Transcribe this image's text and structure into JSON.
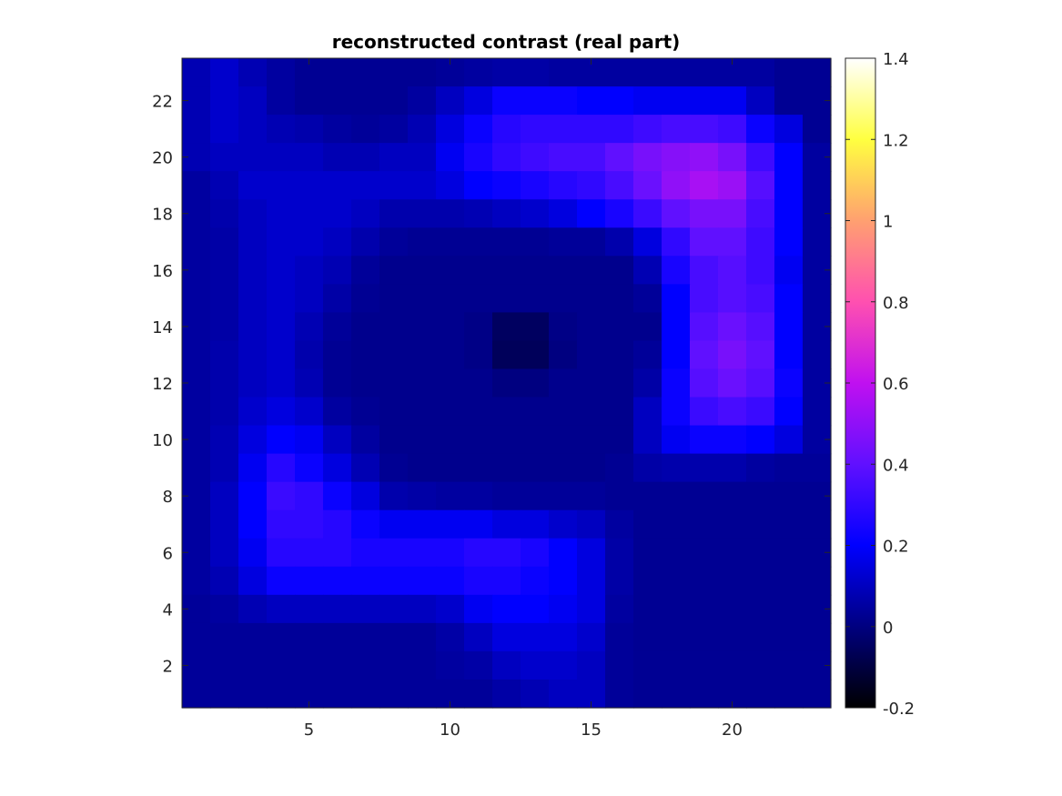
{
  "chart_data": {
    "type": "heatmap",
    "title": "reconstructed contrast (real part)",
    "xlabel": "",
    "ylabel": "",
    "xlim": [
      0.5,
      23.5
    ],
    "ylim": [
      0.5,
      23.5
    ],
    "y_direction": "normal",
    "xticks": [
      5,
      10,
      15,
      20
    ],
    "yticks": [
      2,
      4,
      6,
      8,
      10,
      12,
      14,
      16,
      18,
      20,
      22
    ],
    "colormap": "gnuplot2",
    "colorbar": {
      "range": [
        -0.2,
        1.4
      ],
      "ticks": [
        -0.2,
        0,
        0.2,
        0.4,
        0.6,
        0.8,
        1,
        1.2,
        1.4
      ],
      "tick_labels": [
        "-0.2",
        "0",
        "0.2",
        "0.4",
        "0.6",
        "0.8",
        "1",
        "1.2",
        "1.4"
      ]
    },
    "grid": false,
    "rows_order": "y=23 first (top) down to y=1 (bottom); columns x=1..23",
    "z": [
      [
        0.08,
        0.12,
        0.08,
        0.05,
        0.03,
        0.03,
        0.03,
        0.03,
        0.03,
        0.04,
        0.05,
        0.06,
        0.06,
        0.05,
        0.05,
        0.05,
        0.05,
        0.05,
        0.05,
        0.05,
        0.05,
        0.03,
        0.03
      ],
      [
        0.08,
        0.12,
        0.1,
        0.05,
        0.03,
        0.03,
        0.03,
        0.03,
        0.05,
        0.1,
        0.15,
        0.22,
        0.22,
        0.22,
        0.2,
        0.2,
        0.18,
        0.18,
        0.18,
        0.18,
        0.1,
        0.03,
        0.03
      ],
      [
        0.08,
        0.12,
        0.1,
        0.08,
        0.07,
        0.05,
        0.04,
        0.05,
        0.08,
        0.15,
        0.22,
        0.28,
        0.3,
        0.3,
        0.3,
        0.3,
        0.33,
        0.35,
        0.35,
        0.33,
        0.22,
        0.15,
        0.03
      ],
      [
        0.08,
        0.1,
        0.1,
        0.1,
        0.1,
        0.08,
        0.08,
        0.1,
        0.1,
        0.18,
        0.25,
        0.3,
        0.33,
        0.35,
        0.35,
        0.4,
        0.45,
        0.48,
        0.5,
        0.45,
        0.33,
        0.2,
        0.05
      ],
      [
        0.05,
        0.08,
        0.12,
        0.12,
        0.12,
        0.12,
        0.12,
        0.12,
        0.12,
        0.15,
        0.2,
        0.22,
        0.25,
        0.28,
        0.3,
        0.35,
        0.42,
        0.5,
        0.55,
        0.52,
        0.38,
        0.2,
        0.05
      ],
      [
        0.05,
        0.07,
        0.1,
        0.12,
        0.12,
        0.12,
        0.1,
        0.07,
        0.07,
        0.07,
        0.08,
        0.1,
        0.12,
        0.15,
        0.2,
        0.25,
        0.32,
        0.4,
        0.45,
        0.45,
        0.35,
        0.2,
        0.05
      ],
      [
        0.05,
        0.06,
        0.1,
        0.12,
        0.12,
        0.1,
        0.07,
        0.04,
        0.03,
        0.03,
        0.03,
        0.03,
        0.03,
        0.04,
        0.04,
        0.07,
        0.15,
        0.3,
        0.4,
        0.4,
        0.33,
        0.2,
        0.05
      ],
      [
        0.05,
        0.06,
        0.1,
        0.12,
        0.1,
        0.08,
        0.04,
        0.02,
        0.02,
        0.02,
        0.02,
        0.02,
        0.02,
        0.02,
        0.02,
        0.02,
        0.08,
        0.25,
        0.35,
        0.38,
        0.33,
        0.18,
        0.05
      ],
      [
        0.05,
        0.06,
        0.1,
        0.12,
        0.1,
        0.06,
        0.03,
        0.02,
        0.02,
        0.02,
        0.02,
        0.02,
        0.02,
        0.02,
        0.02,
        0.02,
        0.04,
        0.2,
        0.35,
        0.38,
        0.35,
        0.2,
        0.05
      ],
      [
        0.05,
        0.06,
        0.1,
        0.12,
        0.08,
        0.04,
        0.02,
        0.02,
        0.02,
        0.02,
        0.01,
        -0.05,
        -0.05,
        0.01,
        0.02,
        0.02,
        0.02,
        0.2,
        0.38,
        0.42,
        0.38,
        0.2,
        0.05
      ],
      [
        0.05,
        0.07,
        0.1,
        0.12,
        0.07,
        0.03,
        0.02,
        0.02,
        0.02,
        0.02,
        0.01,
        -0.06,
        -0.06,
        0.0,
        0.02,
        0.02,
        0.04,
        0.2,
        0.4,
        0.45,
        0.4,
        0.2,
        0.05
      ],
      [
        0.05,
        0.07,
        0.1,
        0.12,
        0.08,
        0.03,
        0.02,
        0.02,
        0.02,
        0.02,
        0.02,
        0.0,
        0.0,
        0.02,
        0.02,
        0.02,
        0.06,
        0.22,
        0.38,
        0.42,
        0.38,
        0.22,
        0.05
      ],
      [
        0.05,
        0.07,
        0.12,
        0.15,
        0.12,
        0.05,
        0.03,
        0.02,
        0.02,
        0.02,
        0.02,
        0.02,
        0.02,
        0.02,
        0.02,
        0.02,
        0.1,
        0.22,
        0.32,
        0.35,
        0.32,
        0.2,
        0.05
      ],
      [
        0.05,
        0.08,
        0.15,
        0.2,
        0.18,
        0.1,
        0.05,
        0.02,
        0.02,
        0.02,
        0.02,
        0.02,
        0.02,
        0.02,
        0.02,
        0.02,
        0.1,
        0.18,
        0.22,
        0.22,
        0.2,
        0.15,
        0.05
      ],
      [
        0.05,
        0.08,
        0.18,
        0.28,
        0.22,
        0.15,
        0.08,
        0.03,
        0.02,
        0.02,
        0.02,
        0.02,
        0.02,
        0.02,
        0.02,
        0.03,
        0.06,
        0.07,
        0.07,
        0.07,
        0.05,
        0.04,
        0.04
      ],
      [
        0.05,
        0.1,
        0.2,
        0.32,
        0.3,
        0.22,
        0.15,
        0.07,
        0.06,
        0.05,
        0.05,
        0.04,
        0.04,
        0.04,
        0.04,
        0.03,
        0.03,
        0.03,
        0.03,
        0.03,
        0.03,
        0.03,
        0.03
      ],
      [
        0.05,
        0.1,
        0.2,
        0.3,
        0.3,
        0.28,
        0.22,
        0.18,
        0.18,
        0.18,
        0.18,
        0.15,
        0.15,
        0.12,
        0.1,
        0.05,
        0.03,
        0.03,
        0.03,
        0.03,
        0.03,
        0.03,
        0.03
      ],
      [
        0.05,
        0.1,
        0.18,
        0.28,
        0.28,
        0.28,
        0.25,
        0.25,
        0.25,
        0.25,
        0.28,
        0.28,
        0.25,
        0.2,
        0.15,
        0.06,
        0.03,
        0.03,
        0.03,
        0.03,
        0.03,
        0.03,
        0.03
      ],
      [
        0.05,
        0.08,
        0.15,
        0.22,
        0.22,
        0.22,
        0.22,
        0.22,
        0.22,
        0.22,
        0.25,
        0.25,
        0.22,
        0.2,
        0.15,
        0.06,
        0.03,
        0.03,
        0.03,
        0.03,
        0.03,
        0.03,
        0.03
      ],
      [
        0.04,
        0.05,
        0.08,
        0.1,
        0.1,
        0.1,
        0.1,
        0.1,
        0.1,
        0.12,
        0.18,
        0.2,
        0.2,
        0.18,
        0.15,
        0.05,
        0.03,
        0.03,
        0.03,
        0.03,
        0.03,
        0.03,
        0.03
      ],
      [
        0.04,
        0.04,
        0.04,
        0.04,
        0.04,
        0.04,
        0.04,
        0.04,
        0.04,
        0.06,
        0.1,
        0.15,
        0.15,
        0.15,
        0.12,
        0.04,
        0.03,
        0.03,
        0.03,
        0.03,
        0.03,
        0.03,
        0.03
      ],
      [
        0.04,
        0.04,
        0.04,
        0.04,
        0.04,
        0.04,
        0.04,
        0.04,
        0.04,
        0.05,
        0.06,
        0.1,
        0.12,
        0.12,
        0.1,
        0.04,
        0.03,
        0.03,
        0.03,
        0.03,
        0.03,
        0.03,
        0.03
      ],
      [
        0.04,
        0.04,
        0.04,
        0.04,
        0.04,
        0.04,
        0.04,
        0.04,
        0.04,
        0.04,
        0.04,
        0.06,
        0.08,
        0.1,
        0.1,
        0.04,
        0.03,
        0.03,
        0.03,
        0.03,
        0.03,
        0.03,
        0.03
      ]
    ]
  }
}
